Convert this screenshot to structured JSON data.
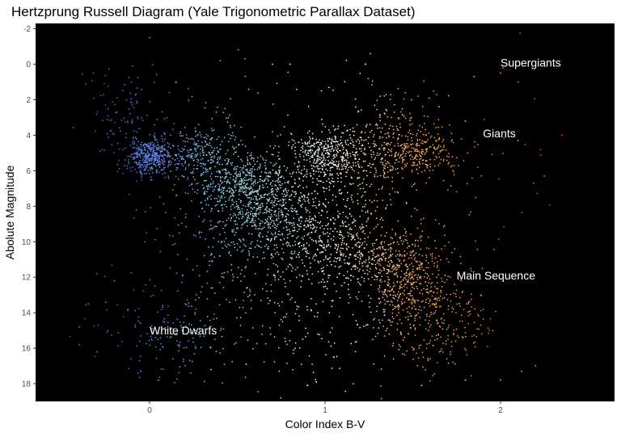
{
  "chart_data": {
    "type": "scatter",
    "title": "Hertzprung Russell Diagram (Yale Trigonometric Parallax Dataset)",
    "xlabel": "Color Index B-V",
    "ylabel": "Abolute Magnitude",
    "xlim": [
      -0.65,
      2.65
    ],
    "ylim": [
      -2.3,
      19.0
    ],
    "y_reversed": true,
    "x_ticks": [
      0,
      1,
      2
    ],
    "x_tick_labels": [
      "0",
      "1",
      "2"
    ],
    "y_ticks": [
      -2,
      0,
      2,
      4,
      6,
      8,
      10,
      12,
      14,
      16,
      18
    ],
    "y_tick_labels": [
      "-2",
      "0",
      "2",
      "4",
      "6",
      "8",
      "10",
      "12",
      "14",
      "16",
      "18"
    ],
    "grid": false,
    "panel_background": "#000000",
    "color_scale": {
      "stops": [
        {
          "x": -0.3,
          "color": "#4169e1"
        },
        {
          "x": 0.1,
          "color": "#6a8cf0"
        },
        {
          "x": 0.4,
          "color": "#87ceeb"
        },
        {
          "x": 0.7,
          "color": "#b0e0e6"
        },
        {
          "x": 1.0,
          "color": "#ffffff"
        },
        {
          "x": 1.2,
          "color": "#ffe4c4"
        },
        {
          "x": 1.45,
          "color": "#ffb060"
        },
        {
          "x": 1.8,
          "color": "#ff9a2e"
        },
        {
          "x": 2.3,
          "color": "#ff4500"
        }
      ]
    },
    "series": [
      {
        "clusters": [
          {
            "x": 0.0,
            "y": 5.2,
            "sx": 0.07,
            "sy": 0.5,
            "n": 420
          },
          {
            "x": -0.15,
            "y": 3.0,
            "sx": 0.08,
            "sy": 1.2,
            "n": 80
          },
          {
            "x": 0.3,
            "y": 5.0,
            "sx": 0.12,
            "sy": 0.8,
            "n": 280
          },
          {
            "x": 0.55,
            "y": 6.8,
            "sx": 0.15,
            "sy": 1.0,
            "n": 520
          },
          {
            "x": 0.65,
            "y": 8.2,
            "sx": 0.15,
            "sy": 1.1,
            "n": 380
          },
          {
            "x": 0.9,
            "y": 9.5,
            "sx": 0.18,
            "sy": 1.1,
            "n": 250
          },
          {
            "x": 1.15,
            "y": 10.4,
            "sx": 0.15,
            "sy": 0.9,
            "n": 240
          },
          {
            "x": 1.45,
            "y": 11.5,
            "sx": 0.12,
            "sy": 1.2,
            "n": 380
          },
          {
            "x": 1.55,
            "y": 13.6,
            "sx": 0.15,
            "sy": 1.4,
            "n": 280
          },
          {
            "x": 1.7,
            "y": 15.2,
            "sx": 0.15,
            "sy": 1.0,
            "n": 100
          },
          {
            "x": 1.0,
            "y": 5.0,
            "sx": 0.1,
            "sy": 0.7,
            "n": 340
          },
          {
            "x": 1.25,
            "y": 5.2,
            "sx": 0.15,
            "sy": 0.9,
            "n": 220
          },
          {
            "x": 1.55,
            "y": 5.0,
            "sx": 0.12,
            "sy": 0.7,
            "n": 240
          },
          {
            "x": 1.4,
            "y": 3.2,
            "sx": 0.15,
            "sy": 0.8,
            "n": 90
          },
          {
            "x": 0.1,
            "y": 15.0,
            "sx": 0.22,
            "sy": 1.2,
            "n": 150
          },
          {
            "x": 0.95,
            "y": 13.8,
            "sx": 0.3,
            "sy": 2.2,
            "n": 180
          },
          {
            "x": 0.6,
            "y": 11.5,
            "sx": 0.3,
            "sy": 2.0,
            "n": 180
          },
          {
            "x": 1.1,
            "y": 7.2,
            "sx": 0.2,
            "sy": 1.2,
            "n": 160
          },
          {
            "x": 0.15,
            "y": 8.5,
            "sx": 0.15,
            "sy": 2.5,
            "n": 60
          },
          {
            "x": 1.9,
            "y": 7.5,
            "sx": 0.2,
            "sy": 3.5,
            "n": 40
          },
          {
            "x": 0.5,
            "y": 1.8,
            "sx": 0.5,
            "sy": 1.2,
            "n": 60
          }
        ],
        "outliers": [
          [
            0.0,
            -1.5
          ],
          [
            0.15,
            1.0
          ],
          [
            0.7,
            0.0
          ],
          [
            0.8,
            0.0
          ],
          [
            1.23,
            0.0
          ],
          [
            2.0,
            0.5
          ],
          [
            2.1,
            1.0
          ],
          [
            1.85,
            0.7
          ],
          [
            2.35,
            4.0
          ],
          [
            2.25,
            6.3
          ],
          [
            2.1,
            4.3
          ],
          [
            2.2,
            17.0
          ],
          [
            2.12,
            17.3
          ],
          [
            2.0,
            17.8
          ],
          [
            1.8,
            17.8
          ],
          [
            -0.4,
            15.8
          ],
          [
            -0.3,
            11.8
          ],
          [
            -0.25,
            13.4
          ],
          [
            -0.3,
            16.2
          ],
          [
            -0.4,
            14.8
          ],
          [
            -0.35,
            13.5
          ],
          [
            0.35,
            17.2
          ],
          [
            0.55,
            16.9
          ],
          [
            0.95,
            17.9
          ],
          [
            0.9,
            18.1
          ],
          [
            1.55,
            18.1
          ],
          [
            1.05,
            16.5
          ],
          [
            -0.05,
            17.3
          ],
          [
            0.05,
            17.8
          ],
          [
            -0.2,
            12.2
          ],
          [
            0.85,
            4.4
          ],
          [
            0.4,
            10.8
          ],
          [
            1.65,
            2.4
          ],
          [
            1.8,
            3.2
          ]
        ]
      }
    ],
    "annotations": [
      {
        "text": "Supergiants",
        "x": 2.0,
        "y": -0.1
      },
      {
        "text": "Giants",
        "x": 1.9,
        "y": 3.9
      },
      {
        "text": "Main Sequence",
        "x": 1.75,
        "y": 11.9
      },
      {
        "text": "White Dwarfs",
        "x": 0.0,
        "y": 15.0
      }
    ]
  }
}
